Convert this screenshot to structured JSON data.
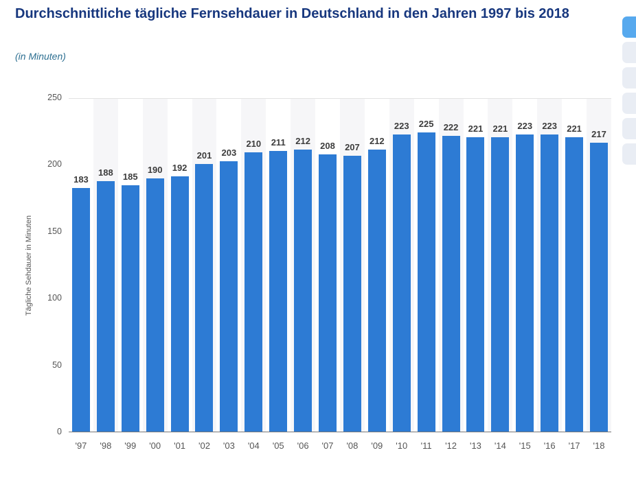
{
  "header": {
    "title": "Durchschnittliche tägliche Fernsehdauer in Deutschland in den Jahren 1997 bis 2018",
    "subtitle": "(in Minuten)"
  },
  "chart_data": {
    "type": "bar",
    "title": "Durchschnittliche tägliche Fernsehdauer in Deutschland in den Jahren 1997 bis 2018",
    "subtitle": "(in Minuten)",
    "categories": [
      "'97",
      "'98",
      "'99",
      "'00",
      "'01",
      "'02",
      "'03",
      "'04",
      "'05",
      "'06",
      "'07",
      "'08",
      "'09",
      "'10",
      "'11",
      "'12",
      "'13",
      "'14",
      "'15",
      "'16",
      "'17",
      "'18"
    ],
    "values": [
      183,
      188,
      185,
      190,
      192,
      201,
      203,
      210,
      211,
      212,
      208,
      207,
      212,
      223,
      225,
      222,
      221,
      221,
      223,
      223,
      221,
      217
    ],
    "xlabel": "",
    "ylabel": "Tägliche Sehdauer in Minuten",
    "ylim": [
      0,
      250
    ],
    "yticks": [
      0,
      50,
      100,
      150,
      200,
      250
    ],
    "bar_color": "#2d7bd4",
    "grid": "top-line-only",
    "legend": "none",
    "column_stripe_color": "#f6f6f8"
  },
  "side_toolbar": {
    "buttons": [
      {
        "name": "toolbar-button-1",
        "color": "#57a9ee"
      },
      {
        "name": "toolbar-button-2",
        "color": "#e9edf4"
      },
      {
        "name": "toolbar-button-3",
        "color": "#e9edf4"
      },
      {
        "name": "toolbar-button-4",
        "color": "#e9edf4"
      },
      {
        "name": "toolbar-button-5",
        "color": "#e9edf4"
      },
      {
        "name": "toolbar-button-6",
        "color": "#e9edf4"
      }
    ]
  }
}
